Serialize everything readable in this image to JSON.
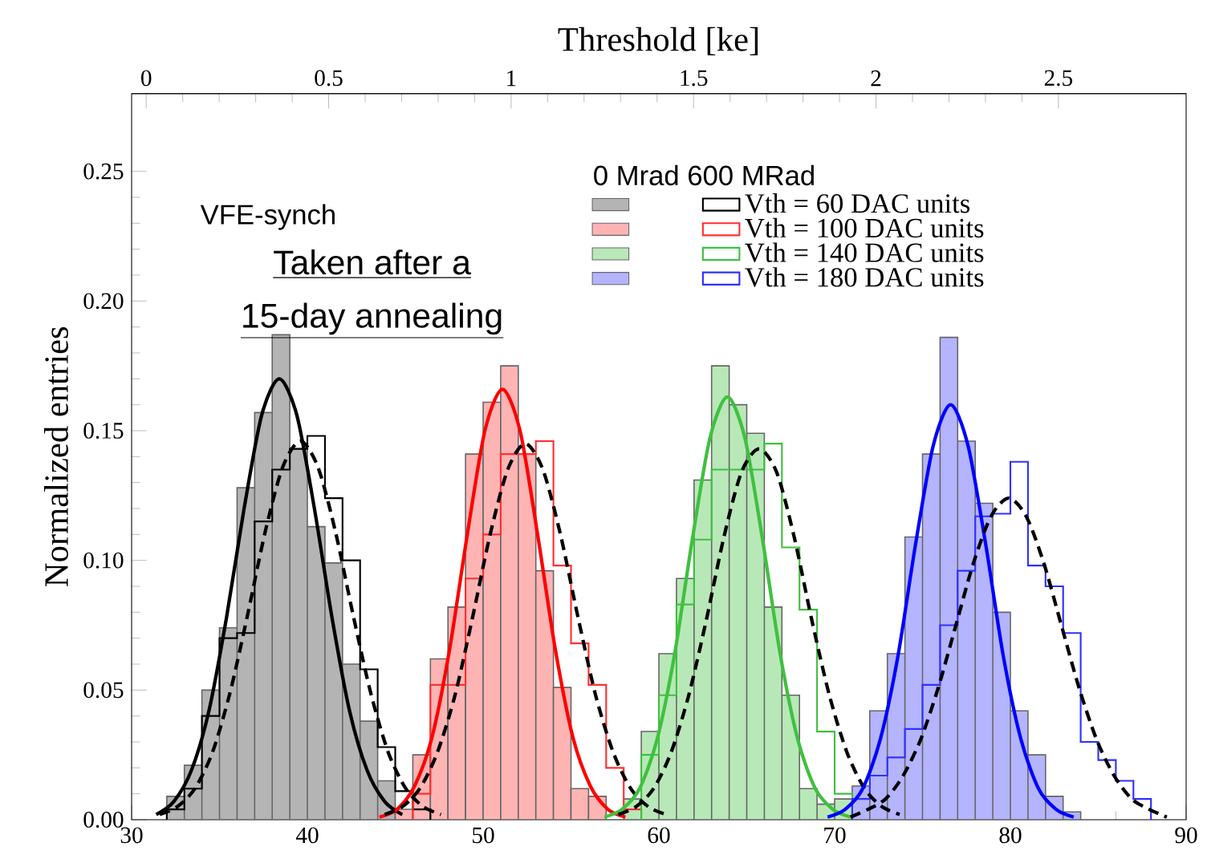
{
  "chart_data": {
    "type": "histogram",
    "x2label": "Threshold [ke]",
    "ylabel": "Normalized entries",
    "legend": "top right",
    "legend_title": "0 Mrad  600  MRad",
    "annotations": [
      "VFE-synch",
      "Taken after a",
      "15-day annealing"
    ],
    "xlim": [
      30,
      90
    ],
    "xticks": [
      30,
      40,
      50,
      60,
      70,
      80,
      90
    ],
    "x2lim": [
      -0.04,
      2.85
    ],
    "x2ticks": [
      0,
      0.5,
      1,
      1.5,
      2,
      2.5
    ],
    "ylim": [
      0,
      0.28
    ],
    "yticks": [
      {
        "value": 0,
        "label": "0.00"
      },
      {
        "value": 0.05,
        "label": "0.05"
      },
      {
        "value": 0.1,
        "label": "0.10"
      },
      {
        "value": 0.15,
        "label": "0.15"
      },
      {
        "value": 0.2,
        "label": "0.20"
      },
      {
        "value": 0.25,
        "label": "0.25"
      }
    ],
    "bins": [
      31,
      32,
      33,
      34,
      35,
      36,
      37,
      38,
      39,
      40,
      41,
      42,
      43,
      44,
      45,
      46,
      47,
      48,
      49,
      50,
      51,
      52,
      53,
      54,
      55,
      56,
      57,
      58,
      59,
      60,
      61,
      62,
      63,
      64,
      65,
      66,
      67,
      68,
      69,
      70,
      71,
      72,
      73,
      74,
      75,
      76,
      77,
      78,
      79,
      80,
      81,
      82,
      83,
      84,
      85,
      86,
      87,
      88,
      89
    ],
    "series": [
      {
        "color": "#b4b4b4",
        "values": [
          null,
          0.009,
          0.021,
          0.05,
          0.074,
          0.128,
          0.157,
          0.187,
          0.143,
          0.113,
          0.099,
          0.06,
          0.038,
          0.015,
          null,
          null,
          null,
          null,
          null,
          null,
          null,
          null,
          null,
          null,
          null,
          null,
          null,
          null,
          null,
          null,
          null,
          null,
          null,
          null,
          null,
          null,
          null,
          null,
          null,
          null,
          null,
          null,
          null,
          null,
          null,
          null,
          null,
          null,
          null,
          null,
          null,
          null,
          null,
          null,
          null,
          null,
          null,
          null
        ]
      },
      {
        "type": "step",
        "name": "Vth = 60 DAC units",
        "color": "#000000",
        "x": [
          32,
          32,
          33,
          34,
          35,
          36,
          37,
          38,
          39,
          40,
          41,
          42,
          43,
          44,
          45,
          46,
          47
        ],
        "values": [
          0,
          0.004,
          0.012,
          0.04,
          0.07,
          0.072,
          0.115,
          0.135,
          0.143,
          0.148,
          0.124,
          0.1,
          0.058,
          0.028,
          0.011,
          0.004,
          0
        ]
      },
      {
        "color": "#ffb4b4",
        "values": [
          null,
          null,
          null,
          null,
          null,
          null,
          null,
          null,
          null,
          null,
          null,
          null,
          null,
          null,
          0.004,
          0.025,
          0.062,
          0.082,
          0.141,
          0.161,
          0.175,
          0.141,
          0.096,
          0.051,
          0.012,
          0.009,
          null,
          null,
          null,
          null,
          null,
          null,
          null,
          null,
          null,
          null,
          null,
          null,
          null,
          null,
          null,
          null,
          null,
          null,
          null,
          null,
          null,
          null,
          null,
          null,
          null,
          null,
          null,
          null,
          null,
          null,
          null,
          null
        ]
      },
      {
        "type": "step",
        "name": "Vth = 100 DAC units",
        "color": "#ff3030",
        "x": [
          46,
          46,
          47,
          48,
          49,
          50,
          51,
          52,
          53,
          54,
          55,
          56,
          57,
          58,
          59
        ],
        "values": [
          0,
          0.01,
          0.052,
          0.052,
          0.093,
          0.11,
          0.141,
          0.141,
          0.146,
          0.098,
          0.068,
          0.052,
          0.02,
          0.004,
          0
        ]
      },
      {
        "color": "#b8e8b8",
        "values": [
          null,
          null,
          null,
          null,
          null,
          null,
          null,
          null,
          null,
          null,
          null,
          null,
          null,
          null,
          null,
          null,
          null,
          null,
          null,
          null,
          null,
          null,
          null,
          null,
          null,
          null,
          null,
          0.008,
          0.034,
          0.064,
          0.093,
          0.131,
          0.175,
          0.16,
          0.149,
          0.082,
          0.048,
          0.012,
          0.006,
          0.008,
          null,
          null,
          null,
          null,
          null,
          null,
          null,
          null,
          null,
          null,
          null,
          null,
          null,
          null,
          null,
          null,
          null,
          null
        ]
      },
      {
        "type": "step",
        "name": "Vth = 140 DAC units",
        "color": "#40c040",
        "x": [
          59,
          59,
          60,
          61,
          62,
          63,
          64,
          65,
          66,
          67,
          68,
          69,
          70,
          71
        ],
        "values": [
          0,
          0.025,
          0.048,
          0.083,
          0.108,
          0.135,
          0.135,
          0.135,
          0.145,
          0.105,
          0.081,
          0.034,
          0.01,
          0
        ]
      },
      {
        "color": "#b4b4ff",
        "values": [
          null,
          null,
          null,
          null,
          null,
          null,
          null,
          null,
          null,
          null,
          null,
          null,
          null,
          null,
          null,
          null,
          null,
          null,
          null,
          null,
          null,
          null,
          null,
          null,
          null,
          null,
          null,
          null,
          null,
          null,
          null,
          null,
          null,
          null,
          null,
          null,
          null,
          null,
          null,
          null,
          0.013,
          0.042,
          0.064,
          0.109,
          0.141,
          0.186,
          0.146,
          0.122,
          0.08,
          0.042,
          0.025,
          0.009,
          0.003,
          null,
          null,
          null,
          null,
          null
        ]
      },
      {
        "type": "step",
        "name": "Vth = 180 DAC units",
        "color": "#3030ff",
        "x": [
          71,
          71,
          72,
          73,
          74,
          75,
          76,
          77,
          78,
          79,
          80,
          81,
          82,
          83,
          84,
          85,
          86,
          87,
          88
        ],
        "values": [
          0,
          0.008,
          0.017,
          0.024,
          0.035,
          0.052,
          0.075,
          0.096,
          0.117,
          0.118,
          0.138,
          0.098,
          0.09,
          0.072,
          0.03,
          0.023,
          0.015,
          0.008,
          0
        ]
      },
      {
        "type": "line",
        "line_style": "solid",
        "color": "#000000",
        "x": [
          31.4,
          32.4,
          33.4,
          34.4,
          35.4,
          36.4,
          37.4,
          38.4,
          39.4,
          40.4,
          41.4,
          42.4,
          43.4,
          44.4,
          45.4
        ],
        "values": [
          0.002,
          0.007,
          0.019,
          0.042,
          0.078,
          0.12,
          0.156,
          0.17,
          0.156,
          0.12,
          0.078,
          0.042,
          0.019,
          0.007,
          0.002
        ]
      },
      {
        "type": "line",
        "line_style": "dashed",
        "color": "#000000",
        "x": [
          31.6,
          32.6,
          33.6,
          34.6,
          35.6,
          36.6,
          37.6,
          38.6,
          39.6,
          40.6,
          41.6,
          42.6,
          43.6,
          44.6,
          45.6,
          46.6,
          47.6
        ],
        "values": [
          0.002,
          0.005,
          0.012,
          0.026,
          0.049,
          0.079,
          0.111,
          0.136,
          0.146,
          0.136,
          0.111,
          0.079,
          0.049,
          0.026,
          0.012,
          0.005,
          0.002
        ]
      },
      {
        "type": "line",
        "line_style": "solid",
        "color": "#ff0000",
        "x": [
          44.1,
          45.1,
          46.1,
          47.1,
          48.1,
          49.1,
          50.1,
          51.1,
          52.1,
          53.1,
          54.1,
          55.1,
          56.1,
          57.1,
          58.1
        ],
        "values": [
          0.001,
          0.004,
          0.013,
          0.032,
          0.066,
          0.11,
          0.15,
          0.166,
          0.15,
          0.11,
          0.066,
          0.032,
          0.013,
          0.004,
          0.001
        ]
      },
      {
        "type": "line",
        "line_style": "dashed",
        "color": "#000000",
        "x": [
          44.4,
          45.4,
          46.4,
          47.4,
          48.4,
          49.4,
          50.4,
          51.4,
          52.4,
          53.4,
          54.4,
          55.4,
          56.4,
          57.4,
          58.4,
          59.4,
          60.4
        ],
        "values": [
          0.002,
          0.005,
          0.012,
          0.026,
          0.048,
          0.078,
          0.11,
          0.135,
          0.145,
          0.135,
          0.11,
          0.078,
          0.048,
          0.026,
          0.012,
          0.005,
          0.002
        ]
      },
      {
        "type": "line",
        "line_style": "solid",
        "color": "#40c040",
        "x": [
          56.9,
          57.9,
          58.9,
          59.9,
          60.9,
          61.9,
          62.9,
          63.9,
          64.9,
          65.9,
          66.9,
          67.9,
          68.9,
          69.9,
          70.9
        ],
        "values": [
          0.001,
          0.004,
          0.012,
          0.031,
          0.064,
          0.108,
          0.147,
          0.163,
          0.147,
          0.108,
          0.064,
          0.031,
          0.012,
          0.004,
          0.001
        ]
      },
      {
        "type": "line",
        "line_style": "dashed",
        "color": "#000000",
        "x": [
          57.7,
          58.7,
          59.7,
          60.7,
          61.7,
          62.7,
          63.7,
          64.7,
          65.7,
          66.7,
          67.7,
          68.7,
          69.7,
          70.7,
          71.7,
          72.7,
          73.7
        ],
        "values": [
          0.002,
          0.005,
          0.012,
          0.026,
          0.048,
          0.077,
          0.109,
          0.134,
          0.143,
          0.134,
          0.109,
          0.077,
          0.048,
          0.026,
          0.012,
          0.005,
          0.002
        ]
      },
      {
        "type": "line",
        "line_style": "solid",
        "color": "#0000ff",
        "x": [
          69.6,
          70.6,
          71.6,
          72.6,
          73.6,
          74.6,
          75.6,
          76.6,
          77.6,
          78.6,
          79.6,
          80.6,
          81.6,
          82.6,
          83.6
        ],
        "values": [
          0.001,
          0.004,
          0.012,
          0.031,
          0.063,
          0.106,
          0.144,
          0.16,
          0.144,
          0.106,
          0.063,
          0.031,
          0.012,
          0.004,
          0.001
        ]
      },
      {
        "type": "line",
        "line_style": "dashed",
        "color": "#000000",
        "x": [
          70.9,
          71.9,
          72.9,
          73.9,
          74.9,
          75.9,
          76.9,
          77.9,
          78.9,
          79.9,
          80.9,
          81.9,
          82.9,
          83.9,
          84.9,
          85.9,
          86.9,
          87.9,
          88.9
        ],
        "values": [
          0.001,
          0.004,
          0.008,
          0.017,
          0.031,
          0.051,
          0.075,
          0.099,
          0.117,
          0.124,
          0.117,
          0.099,
          0.075,
          0.051,
          0.031,
          0.017,
          0.008,
          0.004,
          0.001
        ]
      }
    ]
  }
}
